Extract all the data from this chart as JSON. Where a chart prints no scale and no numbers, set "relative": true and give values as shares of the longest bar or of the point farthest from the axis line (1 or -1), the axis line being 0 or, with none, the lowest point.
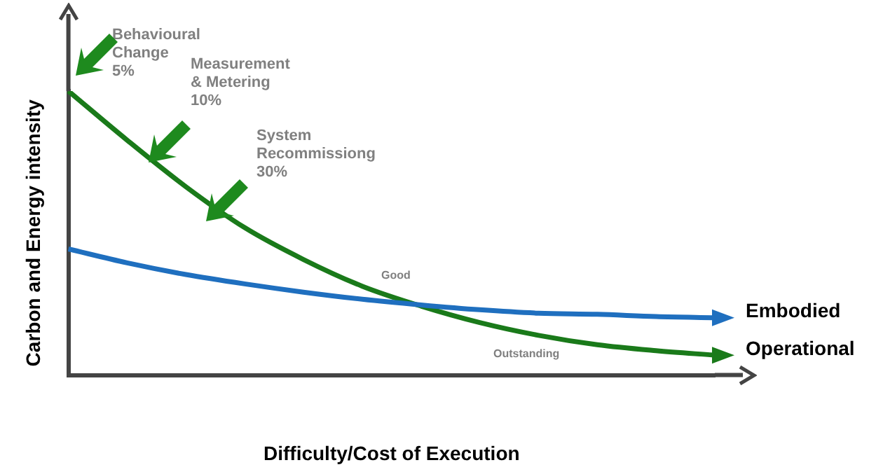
{
  "chart_data": {
    "type": "line",
    "relative": true,
    "xlabel": "Difficulty/Cost of Execution",
    "ylabel": "Carbon and Energy intensity",
    "categories": [
      null,
      null,
      null,
      null,
      null,
      null,
      null,
      null,
      null,
      null,
      null,
      null
    ],
    "series": [
      {
        "name": "Embodied",
        "color": "#1f6fbf",
        "values": [
          0.444,
          0.395,
          0.354,
          0.321,
          0.292,
          0.267,
          0.247,
          0.23,
          0.218,
          0.214,
          0.206,
          0.202
        ]
      },
      {
        "name": "Operational",
        "color": "#1a7a1a",
        "values": [
          1,
          0.827,
          0.663,
          0.519,
          0.407,
          0.313,
          0.243,
          0.185,
          0.14,
          0.107,
          0.086,
          0.07
        ]
      }
    ],
    "annotations": [
      "Behavioural\nChange\n5%",
      "Measurement\n& Metering\n10%",
      "System\nRecommissiong\n30%",
      "Good",
      "Outstanding"
    ],
    "marker": "none",
    "legend": "right",
    "grid": false
  }
}
